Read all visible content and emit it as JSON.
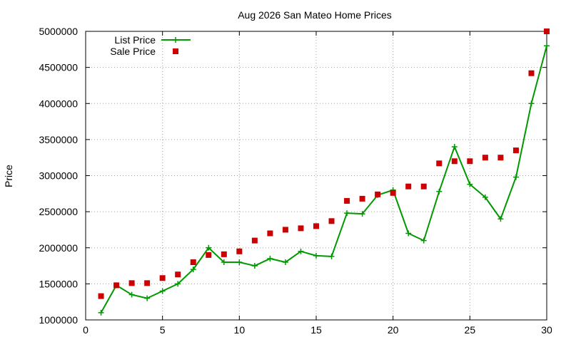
{
  "chart_data": {
    "type": "line",
    "title": "Aug 2026 San Mateo Home Prices",
    "xlabel": "",
    "ylabel": "Price",
    "xlim": [
      0,
      30
    ],
    "ylim": [
      1000000,
      5000000
    ],
    "x_ticks": [
      0,
      5,
      10,
      15,
      20,
      25,
      30
    ],
    "y_ticks": [
      1000000,
      1500000,
      2000000,
      2500000,
      3000000,
      3500000,
      4000000,
      4500000,
      5000000
    ],
    "x_tick_labels": [
      "0",
      "5",
      "10",
      "15",
      "20",
      "25",
      "30"
    ],
    "y_tick_labels": [
      "1000000",
      "1500000",
      "2000000",
      "2500000",
      "3000000",
      "3500000",
      "4000000",
      "4500000",
      "5000000"
    ],
    "grid": true,
    "legend_position": "top-left",
    "x": [
      1,
      2,
      3,
      4,
      5,
      6,
      7,
      8,
      9,
      10,
      11,
      12,
      13,
      14,
      15,
      16,
      17,
      18,
      19,
      20,
      21,
      22,
      23,
      24,
      25,
      26,
      27,
      28,
      29,
      30
    ],
    "series": [
      {
        "name": "List Price",
        "style": "linespoints",
        "marker": "plus",
        "color": "#009900",
        "values": [
          1100000,
          1480000,
          1350000,
          1300000,
          1400000,
          1500000,
          1700000,
          2000000,
          1800000,
          1800000,
          1750000,
          1850000,
          1800000,
          1950000,
          1890000,
          1880000,
          2480000,
          2470000,
          2730000,
          2800000,
          2200000,
          2100000,
          2780000,
          3400000,
          2880000,
          2700000,
          2400000,
          2980000,
          4000000,
          4800000
        ]
      },
      {
        "name": "Sale Price",
        "style": "points",
        "marker": "square",
        "color": "#cc0000",
        "values": [
          1330000,
          1480000,
          1510000,
          1510000,
          1580000,
          1630000,
          1800000,
          1900000,
          1910000,
          1950000,
          2100000,
          2200000,
          2250000,
          2270000,
          2300000,
          2370000,
          2650000,
          2680000,
          2740000,
          2760000,
          2850000,
          2850000,
          3170000,
          3200000,
          3200000,
          3250000,
          3250000,
          3350000,
          4420000,
          5000000
        ]
      }
    ]
  }
}
